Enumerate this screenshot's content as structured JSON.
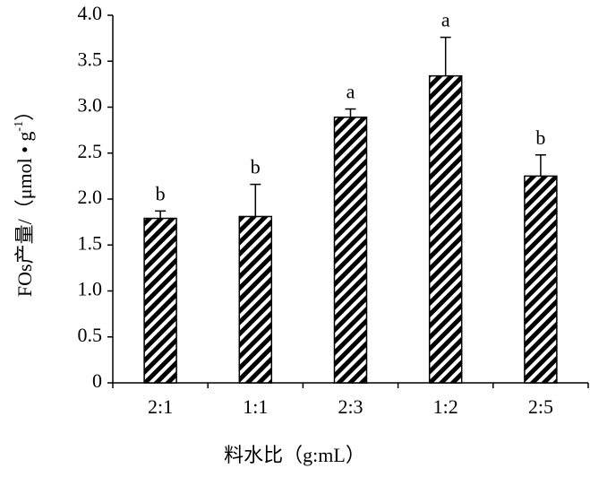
{
  "chart_data": {
    "type": "bar",
    "categories": [
      "2:1",
      "1:1",
      "2:3",
      "1:2",
      "2:5"
    ],
    "values": [
      1.79,
      1.81,
      2.89,
      3.34,
      2.25
    ],
    "errors": [
      0.08,
      0.35,
      0.09,
      0.42,
      0.23
    ],
    "letters": [
      "b",
      "b",
      "a",
      "a",
      "b"
    ],
    "x_label": "料水比（g:mL）",
    "y_label": {
      "main": "FOs产量/（μmol • g",
      "sup": "-1",
      "end": "）"
    },
    "ylim": [
      0,
      4.0
    ],
    "yticks": [
      0,
      0.5,
      {
        "value": 1.0,
        "label": "1.0"
      },
      1.5,
      {
        "value": 2.0,
        "label": "2.0"
      },
      2.5,
      {
        "value": 3.0,
        "label": "3.0"
      },
      3.5,
      {
        "value": 4.0,
        "label": "4.0"
      }
    ],
    "color": "#000000"
  }
}
